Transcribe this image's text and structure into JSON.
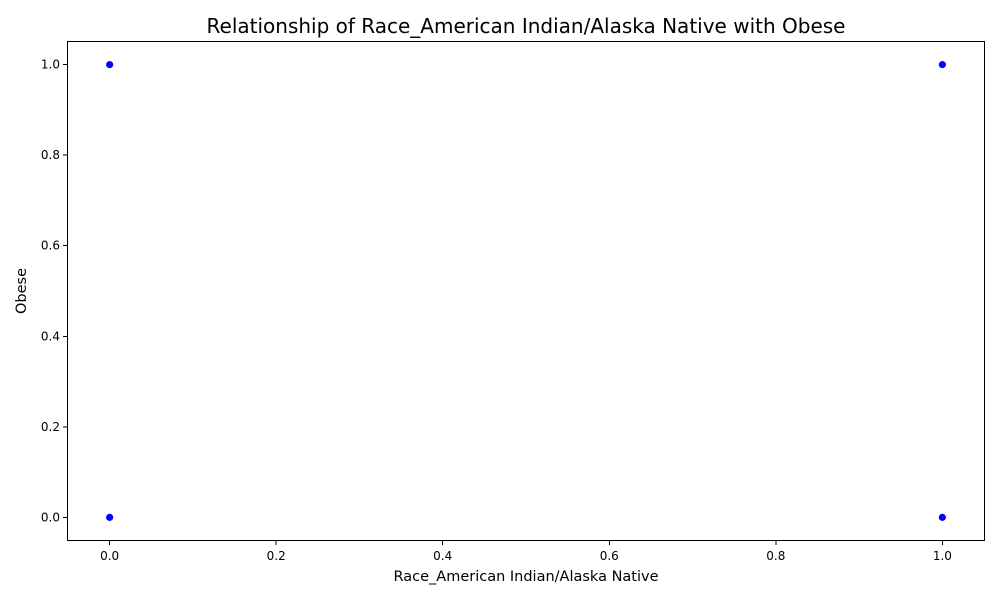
{
  "chart_data": {
    "type": "scatter",
    "title": "Relationship of Race_American Indian/Alaska Native with Obese",
    "xlabel": "Race_American Indian/Alaska Native",
    "ylabel": "Obese",
    "xlim": [
      -0.05,
      1.05
    ],
    "ylim": [
      -0.05,
      1.05
    ],
    "xticks": [
      "0.0",
      "0.2",
      "0.4",
      "0.6",
      "0.8",
      "1.0"
    ],
    "yticks": [
      "0.0",
      "0.2",
      "0.4",
      "0.6",
      "0.8",
      "1.0"
    ],
    "grid": false,
    "point_color": "#0000ff",
    "points": [
      {
        "x": 0,
        "y": 1
      },
      {
        "x": 0,
        "y": 0
      },
      {
        "x": 1,
        "y": 1
      },
      {
        "x": 1,
        "y": 0
      }
    ]
  }
}
